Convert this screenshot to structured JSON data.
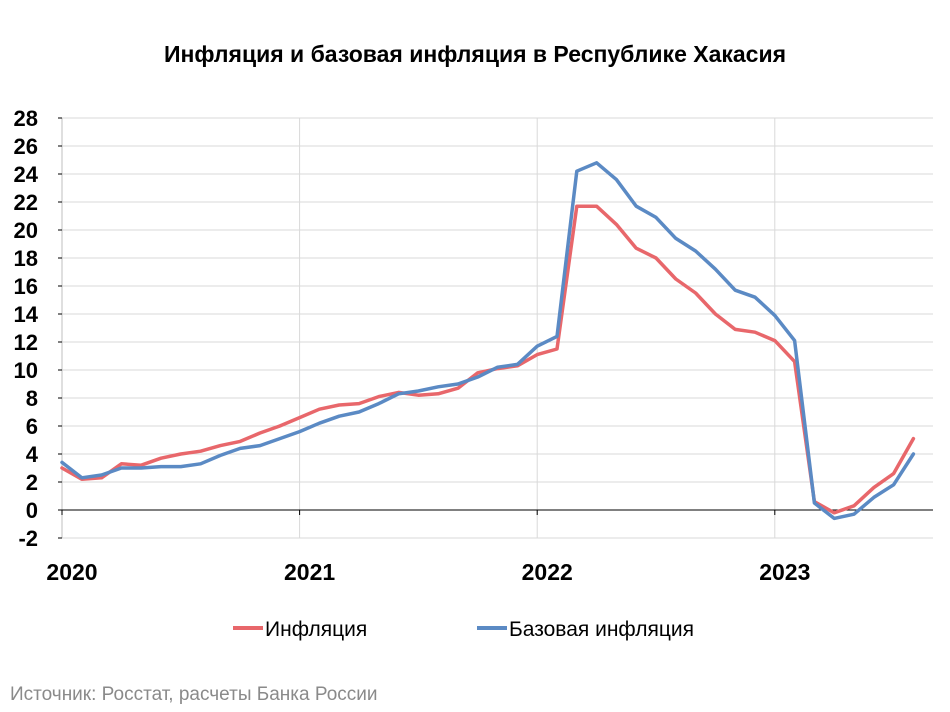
{
  "chart_data": {
    "type": "line",
    "title": "Инфляция и базовая инфляция в Республике Хакасия",
    "xlabel": "",
    "ylabel": "",
    "ylim": [
      -2,
      28
    ],
    "yticks": [
      -2,
      0,
      2,
      4,
      6,
      8,
      10,
      12,
      14,
      16,
      18,
      20,
      22,
      24,
      26,
      28
    ],
    "xticks": [
      {
        "label": "2020",
        "index": 0
      },
      {
        "label": "2021",
        "index": 12
      },
      {
        "label": "2022",
        "index": 24
      },
      {
        "label": "2023",
        "index": 36
      }
    ],
    "grid": true,
    "legend_position": "bottom",
    "x": [
      "2020-01",
      "2020-02",
      "2020-03",
      "2020-04",
      "2020-05",
      "2020-06",
      "2020-07",
      "2020-08",
      "2020-09",
      "2020-10",
      "2020-11",
      "2020-12",
      "2021-01",
      "2021-02",
      "2021-03",
      "2021-04",
      "2021-05",
      "2021-06",
      "2021-07",
      "2021-08",
      "2021-09",
      "2021-10",
      "2021-11",
      "2021-12",
      "2022-01",
      "2022-02",
      "2022-03",
      "2022-04",
      "2022-05",
      "2022-06",
      "2022-07",
      "2022-08",
      "2022-09",
      "2022-10",
      "2022-11",
      "2022-12",
      "2023-01",
      "2023-02",
      "2023-03",
      "2023-04",
      "2023-05",
      "2023-06",
      "2023-07",
      "2023-08"
    ],
    "series": [
      {
        "name": "Инфляция",
        "color": "#e8676b",
        "values": [
          3.0,
          2.2,
          2.3,
          3.3,
          3.2,
          3.7,
          4.0,
          4.2,
          4.6,
          4.9,
          5.5,
          6.0,
          6.6,
          7.2,
          7.5,
          7.6,
          8.1,
          8.4,
          8.2,
          8.3,
          8.7,
          9.8,
          10.1,
          10.3,
          11.1,
          11.5,
          21.7,
          21.7,
          20.4,
          18.7,
          18.0,
          16.5,
          15.5,
          14.0,
          12.9,
          12.7,
          12.1,
          10.6,
          0.6,
          -0.2,
          0.3,
          1.6,
          2.6,
          5.1
        ]
      },
      {
        "name": "Базовая инфляция",
        "color": "#5b8ac4",
        "values": [
          3.4,
          2.3,
          2.5,
          3.0,
          3.0,
          3.1,
          3.1,
          3.3,
          3.9,
          4.4,
          4.6,
          5.1,
          5.6,
          6.2,
          6.7,
          7.0,
          7.6,
          8.3,
          8.5,
          8.8,
          9.0,
          9.5,
          10.2,
          10.4,
          11.7,
          12.4,
          24.2,
          24.8,
          23.6,
          21.7,
          20.9,
          19.4,
          18.5,
          17.2,
          15.7,
          15.2,
          13.9,
          12.1,
          0.5,
          -0.6,
          -0.3,
          0.9,
          1.8,
          4.0
        ]
      }
    ]
  },
  "source_text": "Источник: Росстат, расчеты Банка России"
}
